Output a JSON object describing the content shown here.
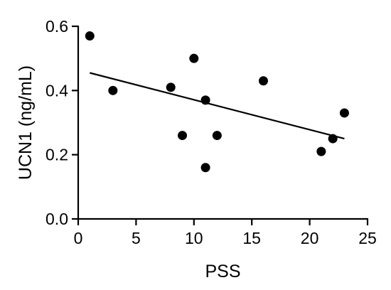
{
  "chart_data": {
    "type": "scatter",
    "xlabel": "PSS",
    "ylabel": "UCN1 (ng/mL)",
    "xlim": [
      0,
      25
    ],
    "ylim": [
      0.0,
      0.6
    ],
    "xticks": [
      0,
      5,
      10,
      15,
      20,
      25
    ],
    "yticks": [
      0.0,
      0.2,
      0.4,
      0.6
    ],
    "xtick_labels": [
      "0",
      "5",
      "10",
      "15",
      "20",
      "25"
    ],
    "ytick_labels": [
      "0.0",
      "0.2",
      "0.4",
      "0.6"
    ],
    "grid": false,
    "points": [
      {
        "x": 1,
        "y": 0.57
      },
      {
        "x": 3,
        "y": 0.4
      },
      {
        "x": 8,
        "y": 0.41
      },
      {
        "x": 9,
        "y": 0.26
      },
      {
        "x": 10,
        "y": 0.5
      },
      {
        "x": 11,
        "y": 0.37
      },
      {
        "x": 11,
        "y": 0.16
      },
      {
        "x": 12,
        "y": 0.26
      },
      {
        "x": 16,
        "y": 0.43
      },
      {
        "x": 21,
        "y": 0.21
      },
      {
        "x": 22,
        "y": 0.25
      },
      {
        "x": 23,
        "y": 0.33
      }
    ],
    "trendline": {
      "x": [
        1,
        23
      ],
      "y": [
        0.455,
        0.25
      ]
    },
    "colors": {
      "marker": "#000000",
      "line": "#000000"
    }
  }
}
